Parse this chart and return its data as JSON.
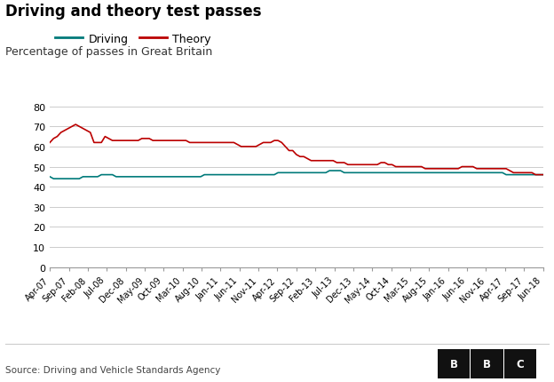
{
  "title": "Driving and theory test passes",
  "subtitle": "Percentage of passes in Great Britain",
  "source": "Source: Driving and Vehicle Standards Agency",
  "driving_color": "#007A7A",
  "theory_color": "#BB0000",
  "background_color": "#ffffff",
  "ylim": [
    0,
    80
  ],
  "yticks": [
    0,
    10,
    20,
    30,
    40,
    50,
    60,
    70,
    80
  ],
  "xtick_labels": [
    "Apr-07",
    "Sep-07",
    "Feb-08",
    "Jul-08",
    "Dec-08",
    "May-09",
    "Oct-09",
    "Mar-10",
    "Aug-10",
    "Jan-11",
    "Jun-11",
    "Nov-11",
    "Apr-12",
    "Sep-12",
    "Feb-13",
    "Jul-13",
    "Dec-13",
    "May-14",
    "Oct-14",
    "Mar-15",
    "Aug-15",
    "Jan-16",
    "Jun-16",
    "Nov-16",
    "Apr-17",
    "Sep-17",
    "Jun-18"
  ],
  "driving_monthly": [
    45,
    44,
    44,
    44,
    44,
    44,
    44,
    44,
    44,
    45,
    45,
    45,
    45,
    45,
    46,
    46,
    46,
    46,
    45,
    45,
    45,
    45,
    45,
    45,
    45,
    45,
    45,
    45,
    45,
    45,
    45,
    45,
    45,
    45,
    45,
    45,
    45,
    45,
    45,
    45,
    45,
    45,
    46,
    46,
    46,
    46,
    46,
    46,
    46,
    46,
    46,
    46,
    46,
    46,
    46,
    46,
    46,
    46,
    46,
    46,
    46,
    46,
    47,
    47,
    47,
    47,
    47,
    47,
    47,
    47,
    47,
    47,
    47,
    47,
    47,
    47,
    48,
    48,
    48,
    48,
    47,
    47,
    47,
    47,
    47,
    47,
    47,
    47,
    47,
    47,
    47,
    47,
    47,
    47,
    47,
    47,
    47,
    47,
    47,
    47,
    47,
    47,
    47,
    47,
    47,
    47,
    47,
    47,
    47,
    47,
    47,
    47,
    47,
    47,
    47,
    47,
    47,
    47,
    47,
    47,
    47,
    47,
    47,
    47,
    46,
    46,
    46,
    46,
    46,
    46,
    46,
    46,
    46,
    46,
    46
  ],
  "theory_monthly": [
    62,
    64,
    65,
    67,
    68,
    69,
    70,
    71,
    70,
    69,
    68,
    67,
    62,
    62,
    62,
    65,
    64,
    63,
    63,
    63,
    63,
    63,
    63,
    63,
    63,
    64,
    64,
    64,
    63,
    63,
    63,
    63,
    63,
    63,
    63,
    63,
    63,
    63,
    62,
    62,
    62,
    62,
    62,
    62,
    62,
    62,
    62,
    62,
    62,
    62,
    62,
    61,
    60,
    60,
    60,
    60,
    60,
    61,
    62,
    62,
    62,
    63,
    63,
    62,
    60,
    58,
    58,
    56,
    55,
    55,
    54,
    53,
    53,
    53,
    53,
    53,
    53,
    53,
    52,
    52,
    52,
    51,
    51,
    51,
    51,
    51,
    51,
    51,
    51,
    51,
    52,
    52,
    51,
    51,
    50,
    50,
    50,
    50,
    50,
    50,
    50,
    50,
    49,
    49,
    49,
    49,
    49,
    49,
    49,
    49,
    49,
    49,
    50,
    50,
    50,
    50,
    49,
    49,
    49,
    49,
    49,
    49,
    49,
    49,
    49,
    48,
    47,
    47,
    47,
    47,
    47,
    47,
    46,
    46,
    46
  ]
}
